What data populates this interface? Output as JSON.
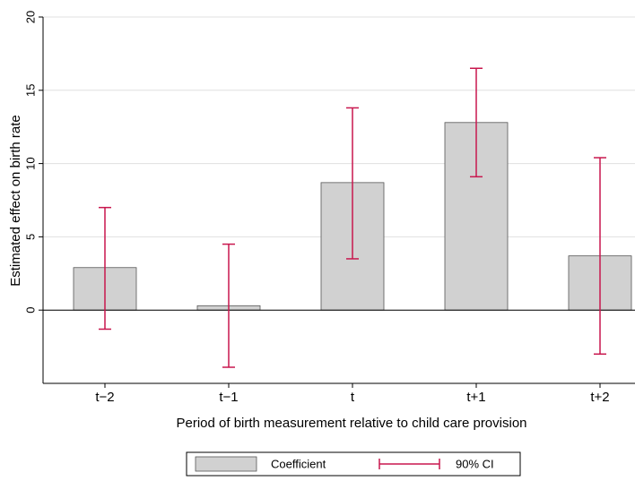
{
  "chart_data": {
    "type": "bar",
    "ylabel": "Estimated effect on birth rate",
    "xlabel": "Period of birth measurement relative to child care provision",
    "categories": [
      "t−2",
      "t−1",
      "t",
      "t+1",
      "t+2"
    ],
    "series": [
      {
        "name": "Coefficient",
        "color": "#d1d1d1",
        "values": [
          2.9,
          0.3,
          8.7,
          12.8,
          3.7
        ]
      }
    ],
    "ci": {
      "name": "90% CI",
      "color": "#c8174e",
      "low": [
        -1.3,
        -3.9,
        3.5,
        9.1,
        -3.0
      ],
      "high": [
        7.0,
        4.5,
        13.8,
        16.5,
        10.4
      ]
    },
    "ylim": [
      -5,
      20
    ],
    "yticks": [
      0,
      5,
      10,
      15,
      20
    ],
    "grid": true
  }
}
